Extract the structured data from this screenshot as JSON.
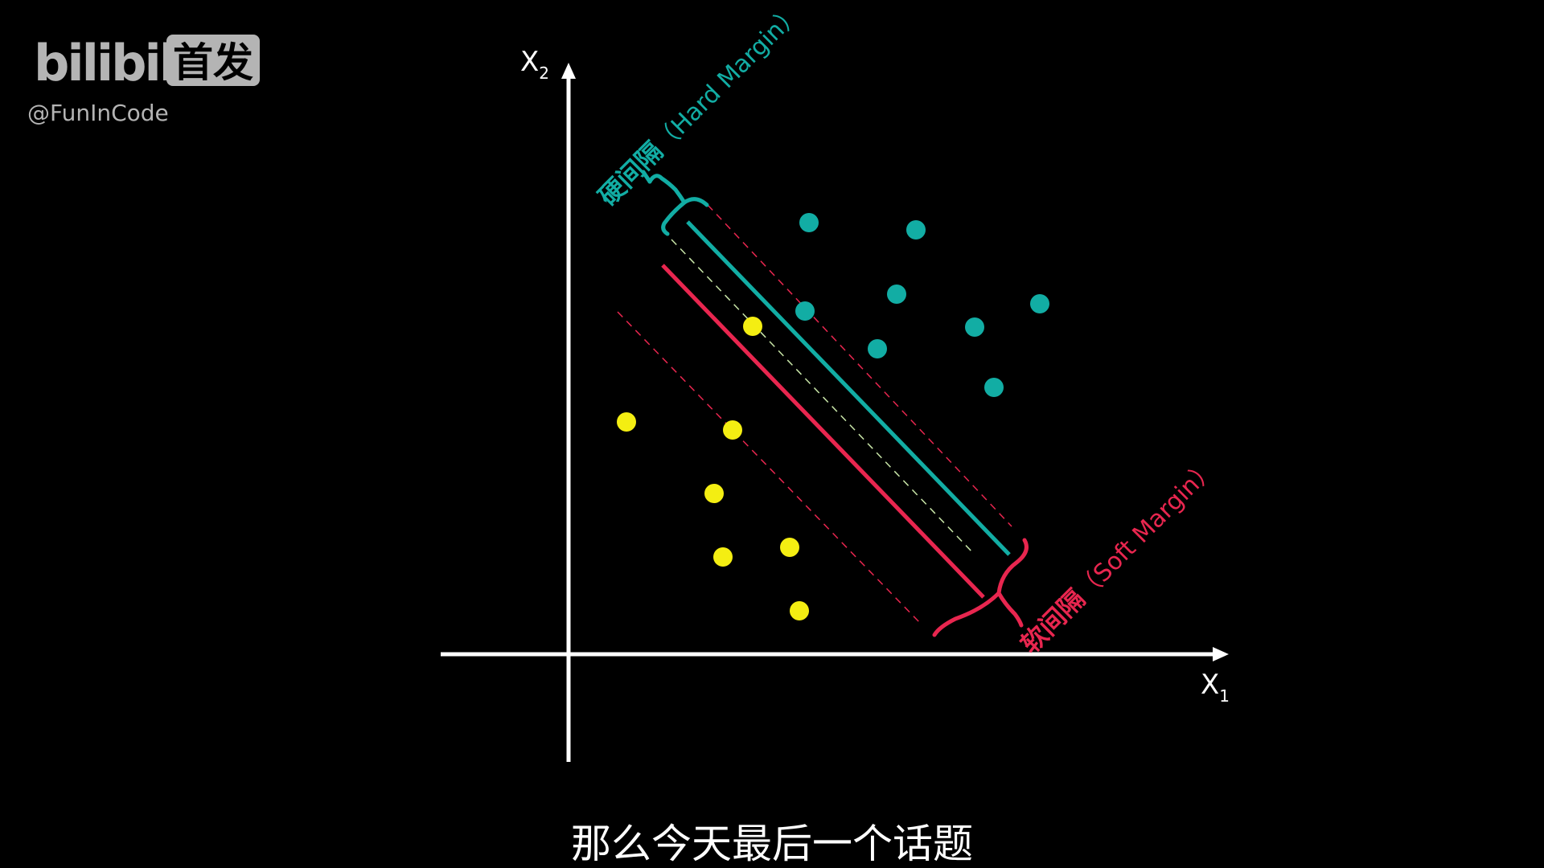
{
  "watermark": {
    "logo_text": "bilibili",
    "badge_text": "首发",
    "handle": "@FunInCode"
  },
  "axes": {
    "x_label": "X",
    "x_sub": "1",
    "y_label": "X",
    "y_sub": "2"
  },
  "annotations": {
    "hard_margin_cn": "硬间隔",
    "hard_margin_en": "（Hard Margin）",
    "soft_margin_cn": "软间隔",
    "soft_margin_en": "（Soft Margin）"
  },
  "colors": {
    "background": "#000000",
    "axis": "#ffffff",
    "class_a": "#12ada4",
    "class_b": "#f4ee12",
    "hard_margin": "#12ada4",
    "soft_margin": "#e8264f",
    "center_line": "#c9e6a8",
    "watermark": "#b4b4b4"
  },
  "subtitle": "那么今天最后一个话题"
}
